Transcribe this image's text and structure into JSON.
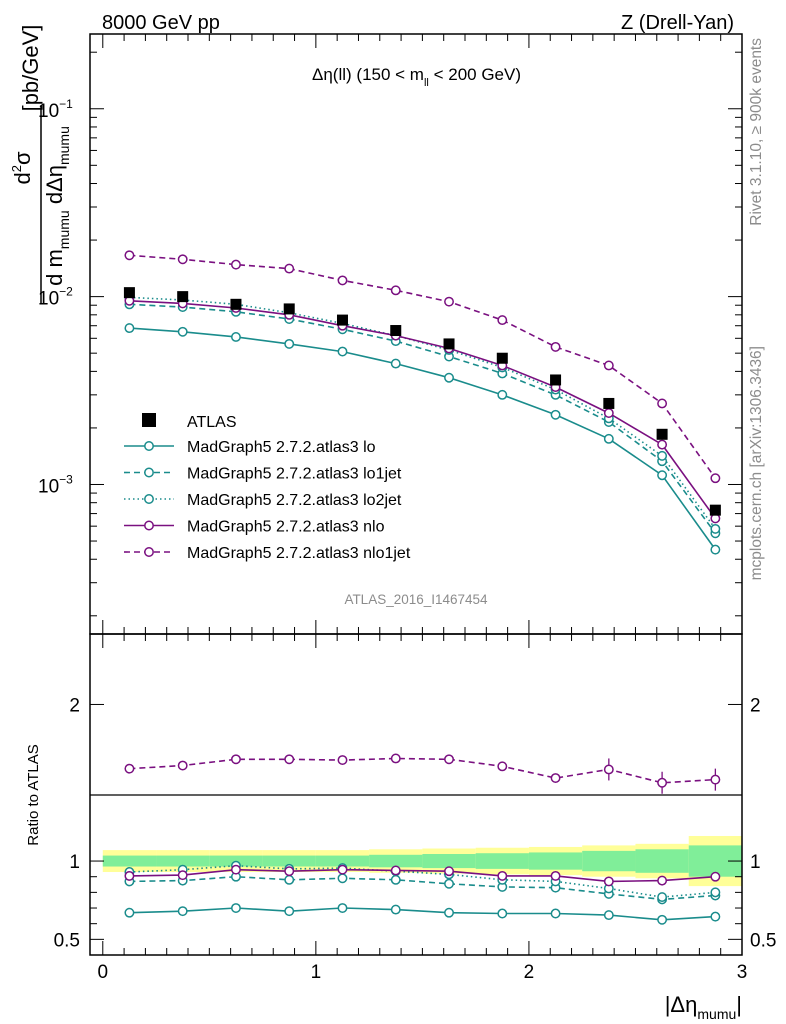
{
  "header": {
    "left": "8000 GeV pp",
    "right": "Z (Drell-Yan)"
  },
  "side_labels": {
    "rivet": "Rivet 3.1.10, ≥ 900k events",
    "mcplots": "mcplots.cern.ch [arXiv:1306.3436]"
  },
  "chart_data": [
    {
      "type": "line",
      "title_main": "Δη(ll) (150 < m",
      "title_sub": "ll",
      "title_end": " < 200 GeV)",
      "ylabel": "d²σ / d m_mumu dΔη_mumu [pb/GeV]",
      "ylabel_unit": "[pb/GeV]",
      "yscale": "log",
      "ylim": [
        0.00016,
        0.25
      ],
      "xlim": [
        -0.06,
        3.0
      ],
      "y_tick_labels": [
        {
          "value": 0.1,
          "mantissa": "10",
          "exp": "−1"
        },
        {
          "value": 0.01,
          "mantissa": "10",
          "exp": "−2"
        },
        {
          "value": 0.001,
          "mantissa": "10",
          "exp": "−3"
        }
      ],
      "analysis_label": "ATLAS_2016_I1467454",
      "legend_position": "lower-left",
      "x": [
        0.125,
        0.375,
        0.625,
        0.875,
        1.125,
        1.375,
        1.625,
        1.875,
        2.125,
        2.375,
        2.625,
        2.875
      ],
      "data": {
        "name": "ATLAS",
        "values": [
          0.0105,
          0.01,
          0.0091,
          0.0086,
          0.0075,
          0.0066,
          0.0056,
          0.0047,
          0.0036,
          0.0027,
          0.00185,
          0.00073
        ]
      },
      "series": [
        {
          "name": "MadGraph5 2.7.2.atlas3 lo",
          "color": "#1a8c8c",
          "dash": "solid",
          "values": [
            0.0068,
            0.0065,
            0.0061,
            0.0056,
            0.0051,
            0.0044,
            0.0037,
            0.003,
            0.00235,
            0.00175,
            0.00112,
            0.00045
          ]
        },
        {
          "name": "MadGraph5 2.7.2.atlas3 lo1jet",
          "color": "#1a8c8c",
          "dash": "dashed",
          "values": [
            0.0091,
            0.0088,
            0.0083,
            0.0076,
            0.0067,
            0.0058,
            0.0048,
            0.0039,
            0.003,
            0.00215,
            0.00133,
            0.00055
          ]
        },
        {
          "name": "MadGraph5 2.7.2.atlas3 lo2jet",
          "color": "#1a8c8c",
          "dash": "dotted",
          "values": [
            0.0099,
            0.0096,
            0.0091,
            0.0082,
            0.0072,
            0.0062,
            0.0052,
            0.0042,
            0.0032,
            0.00225,
            0.00142,
            0.00058
          ]
        },
        {
          "name": "MadGraph5 2.7.2.atlas3 nlo",
          "color": "#7a1080",
          "dash": "solid",
          "values": [
            0.0095,
            0.0092,
            0.0087,
            0.008,
            0.007,
            0.0062,
            0.0053,
            0.0043,
            0.0033,
            0.0024,
            0.00163,
            0.00066
          ]
        },
        {
          "name": "MadGraph5 2.7.2.atlas3 nlo1jet",
          "color": "#7a1080",
          "dash": "dashed",
          "values": [
            0.0166,
            0.0158,
            0.0148,
            0.0141,
            0.0122,
            0.0108,
            0.0094,
            0.0075,
            0.0054,
            0.0043,
            0.0027,
            0.00108
          ]
        }
      ]
    },
    {
      "type": "line",
      "ylabel": "Ratio to ATLAS",
      "xlabel_main": "|Δη",
      "xlabel_sub": "mumu",
      "xlabel_end": "|",
      "ylim": [
        0.4,
        2.45
      ],
      "xlim": [
        -0.06,
        3.0
      ],
      "x_tick_labels": [
        "0",
        "1",
        "2",
        "3"
      ],
      "y_tick_labels": [
        "0.5",
        "1",
        "2"
      ],
      "x": [
        0.125,
        0.375,
        0.625,
        0.875,
        1.125,
        1.375,
        1.625,
        1.875,
        2.125,
        2.375,
        2.625,
        2.875
      ],
      "band_edges": [
        0.0,
        0.25,
        0.5,
        0.75,
        1.0,
        1.25,
        1.5,
        1.75,
        2.0,
        2.25,
        2.5,
        2.75,
        3.0
      ],
      "band_inner": [
        0.035,
        0.035,
        0.035,
        0.035,
        0.035,
        0.04,
        0.045,
        0.05,
        0.055,
        0.065,
        0.075,
        0.1
      ],
      "band_outer": [
        0.07,
        0.07,
        0.07,
        0.07,
        0.07,
        0.075,
        0.08,
        0.085,
        0.09,
        0.1,
        0.11,
        0.16
      ],
      "series": [
        {
          "name": "MadGraph5 2.7.2.atlas3 lo",
          "color": "#1a8c8c",
          "dash": "solid",
          "values": [
            0.67,
            0.68,
            0.7,
            0.68,
            0.7,
            0.69,
            0.67,
            0.665,
            0.665,
            0.655,
            0.625,
            0.645
          ]
        },
        {
          "name": "MadGraph5 2.7.2.atlas3 lo1jet",
          "color": "#1a8c8c",
          "dash": "dashed",
          "values": [
            0.87,
            0.875,
            0.9,
            0.88,
            0.89,
            0.88,
            0.855,
            0.835,
            0.83,
            0.79,
            0.755,
            0.78
          ]
        },
        {
          "name": "MadGraph5 2.7.2.atlas3 lo2jet",
          "color": "#1a8c8c",
          "dash": "dotted",
          "values": [
            0.93,
            0.945,
            0.97,
            0.95,
            0.955,
            0.935,
            0.915,
            0.88,
            0.87,
            0.825,
            0.77,
            0.8
          ]
        },
        {
          "name": "MadGraph5 2.7.2.atlas3 nlo",
          "color": "#7a1080",
          "dash": "solid",
          "values": [
            0.905,
            0.91,
            0.945,
            0.935,
            0.945,
            0.94,
            0.935,
            0.905,
            0.905,
            0.87,
            0.875,
            0.9
          ]
        },
        {
          "name": "MadGraph5 2.7.2.atlas3 nlo1jet",
          "color": "#7a1080",
          "dash": "dashed",
          "values": [
            1.59,
            1.61,
            1.65,
            1.65,
            1.645,
            1.655,
            1.65,
            1.605,
            1.53,
            1.585,
            1.5,
            1.52
          ]
        }
      ]
    }
  ]
}
